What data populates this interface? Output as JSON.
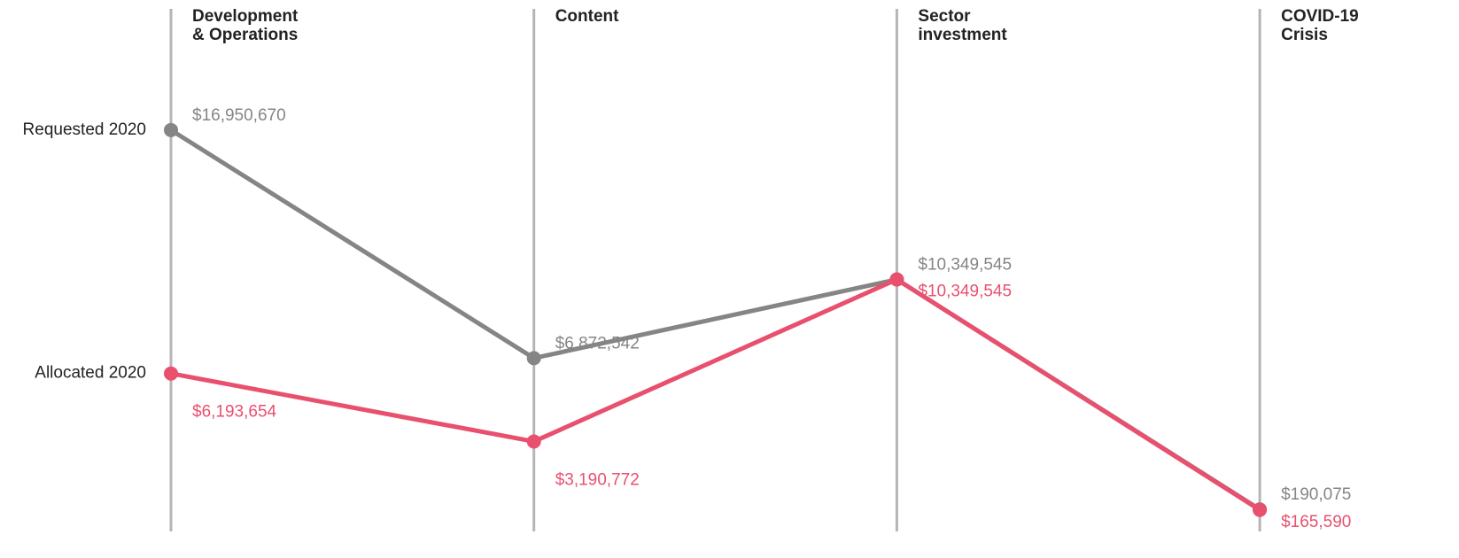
{
  "chart_data": {
    "type": "line",
    "categories": [
      "Development & Operations",
      "Content",
      "Sector investment",
      "COVID-19 Crisis"
    ],
    "series": [
      {
        "name": "Requested 2020",
        "color": "#858585",
        "values": [
          16950670,
          6872542,
          10349545,
          190075
        ],
        "value_labels": [
          "$16,950,670",
          "$6,872,542",
          "$10,349,545",
          "$190,075"
        ]
      },
      {
        "name": "Allocated 2020",
        "color": "#e8506e",
        "values": [
          6193654,
          3190772,
          10349545,
          165590
        ],
        "value_labels": [
          "$6,193,654",
          "$3,190,772",
          "$10,349,545",
          "$165,590"
        ]
      }
    ],
    "ylim": [
      0,
      18000000
    ]
  }
}
